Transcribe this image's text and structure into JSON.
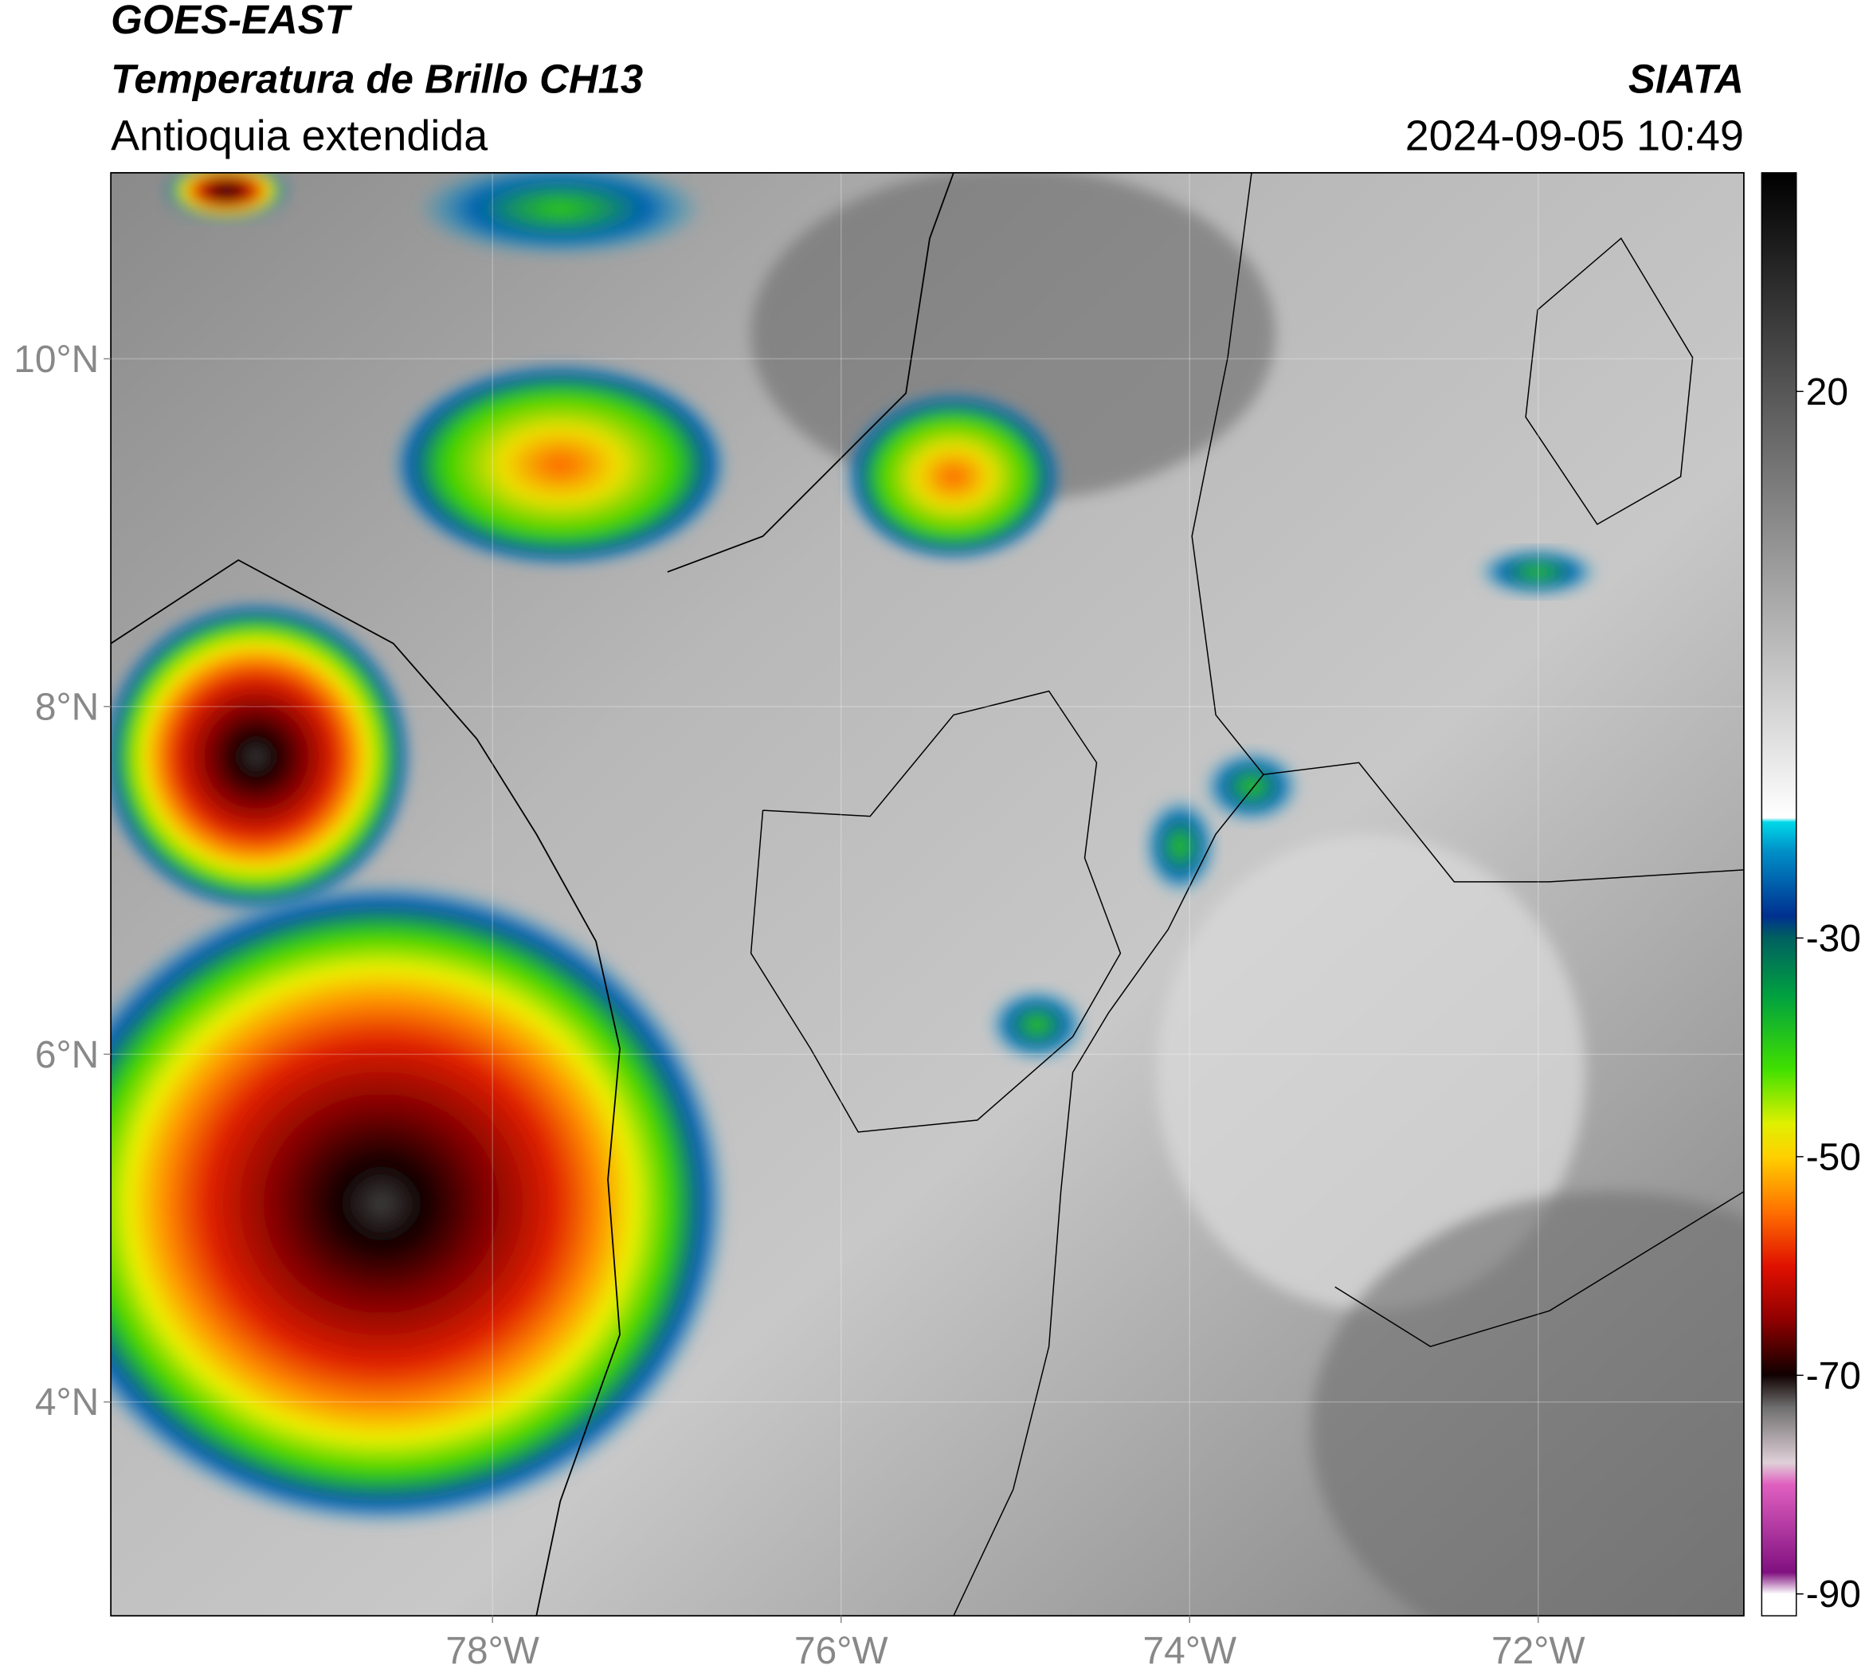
{
  "header": {
    "title": "GOES-EAST",
    "subtitle": "Temperatura de Brillo CH13",
    "region": "Antioquia extendida",
    "source": "SIATA",
    "datetime": "2024-09-05 10:49"
  },
  "map": {
    "xlim": [
      -80.19,
      -70.82
    ],
    "ylim": [
      2.77,
      11.07
    ],
    "xticks": [
      {
        "value": -78,
        "label": "78°W"
      },
      {
        "value": -76,
        "label": "76°W"
      },
      {
        "value": -74,
        "label": "74°W"
      },
      {
        "value": -72,
        "label": "72°W"
      }
    ],
    "yticks": [
      {
        "value": 4,
        "label": "4°N"
      },
      {
        "value": 6,
        "label": "6°N"
      },
      {
        "value": 8,
        "label": "8°N"
      },
      {
        "value": 10,
        "label": "10°N"
      }
    ]
  },
  "colorbar": {
    "lim": [
      -92,
      40
    ],
    "ticks": [
      20,
      -30,
      -50,
      -70,
      -90
    ]
  }
}
